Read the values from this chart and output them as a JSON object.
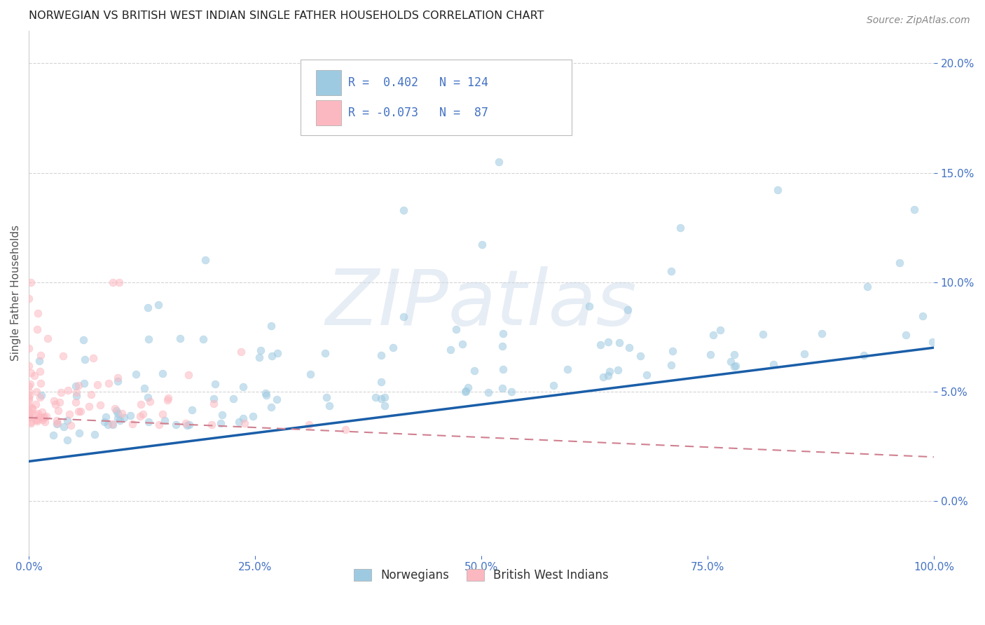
{
  "title": "NORWEGIAN VS BRITISH WEST INDIAN SINGLE FATHER HOUSEHOLDS CORRELATION CHART",
  "source": "Source: ZipAtlas.com",
  "xlabel": "",
  "ylabel": "Single Father Households",
  "watermark": "ZIPatlas",
  "xlim": [
    0.0,
    1.0
  ],
  "ylim": [
    -0.025,
    0.215
  ],
  "xticks": [
    0.0,
    0.25,
    0.5,
    0.75,
    1.0
  ],
  "xtick_labels": [
    "0.0%",
    "25.0%",
    "50.0%",
    "75.0%",
    "100.0%"
  ],
  "yticks": [
    0.0,
    0.05,
    0.1,
    0.15,
    0.2
  ],
  "ytick_labels": [
    "0.0%",
    "5.0%",
    "10.0%",
    "15.0%",
    "20.0%"
  ],
  "norwegian_color": "#9ecae1",
  "bwi_color": "#fcb8c0",
  "trend_blue": "#1a5ea8",
  "trend_pink": "#d08090",
  "R_norwegian": 0.402,
  "N_norwegian": 124,
  "R_bwi": -0.073,
  "N_bwi": 87,
  "legend_labels": [
    "Norwegians",
    "British West Indians"
  ],
  "background_color": "#ffffff",
  "grid_color": "#d0d0d0",
  "axis_color": "#4472c4",
  "marker_size": 60,
  "marker_alpha": 0.55
}
